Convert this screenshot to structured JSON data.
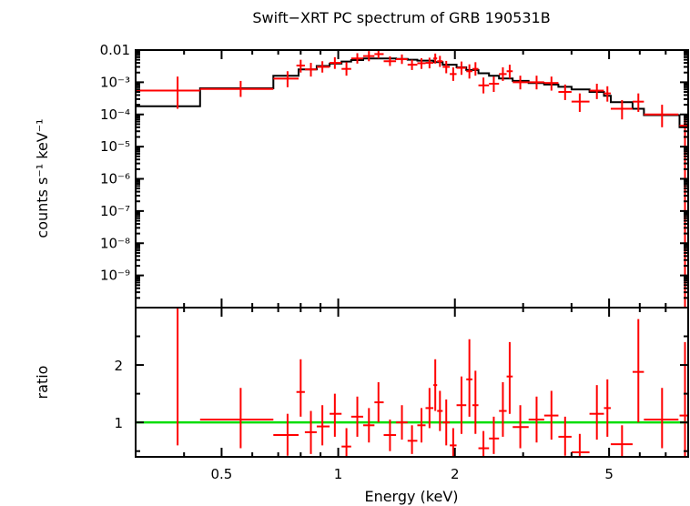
{
  "chart_data": [
    {
      "type": "scatter",
      "title": "Swift−XRT PC spectrum of GRB 190531B",
      "ylabel": "counts s⁻¹ keV⁻¹",
      "xscale": "log",
      "yscale": "log",
      "xlim": [
        0.3,
        8.0
      ],
      "ylim": [
        1e-10,
        0.01
      ],
      "grid": false,
      "yticks": [
        {
          "value": 0.01,
          "label": "0.01"
        },
        {
          "value": 0.001,
          "label": "10⁻³"
        },
        {
          "value": 0.0001,
          "label": "10⁻⁴"
        },
        {
          "value": 1e-05,
          "label": "10⁻⁵"
        },
        {
          "value": 1e-06,
          "label": "10⁻⁶"
        },
        {
          "value": 1e-07,
          "label": "10⁻⁷"
        },
        {
          "value": 1e-08,
          "label": "10⁻⁸"
        },
        {
          "value": 1e-09,
          "label": "10⁻⁹"
        }
      ],
      "data_color": "#ff0000",
      "model_color": "#000000",
      "series": [
        {
          "kind": "data",
          "points": [
            {
              "x": 0.385,
              "xlo": 0.3,
              "xhi": 0.44,
              "y": 0.00055,
              "ylo": 0.00015,
              "yhi": 0.0015
            },
            {
              "x": 0.56,
              "xlo": 0.44,
              "xhi": 0.68,
              "y": 0.00062,
              "ylo": 0.00035,
              "yhi": 0.0011
            },
            {
              "x": 0.74,
              "xlo": 0.68,
              "xhi": 0.79,
              "y": 0.0013,
              "ylo": 0.0007,
              "yhi": 0.0022
            },
            {
              "x": 0.8,
              "xlo": 0.78,
              "xhi": 0.82,
              "y": 0.0033,
              "ylo": 0.002,
              "yhi": 0.005
            },
            {
              "x": 0.85,
              "xlo": 0.82,
              "xhi": 0.88,
              "y": 0.0025,
              "ylo": 0.0015,
              "yhi": 0.004
            },
            {
              "x": 0.91,
              "xlo": 0.88,
              "xhi": 0.95,
              "y": 0.003,
              "ylo": 0.002,
              "yhi": 0.0045
            },
            {
              "x": 0.98,
              "xlo": 0.95,
              "xhi": 1.02,
              "y": 0.004,
              "ylo": 0.0026,
              "yhi": 0.006
            },
            {
              "x": 1.05,
              "xlo": 1.02,
              "xhi": 1.08,
              "y": 0.0026,
              "ylo": 0.0016,
              "yhi": 0.0042
            },
            {
              "x": 1.12,
              "xlo": 1.08,
              "xhi": 1.16,
              "y": 0.0055,
              "ylo": 0.0038,
              "yhi": 0.008
            },
            {
              "x": 1.2,
              "xlo": 1.16,
              "xhi": 1.24,
              "y": 0.0065,
              "ylo": 0.0045,
              "yhi": 0.0093
            },
            {
              "x": 1.27,
              "xlo": 1.24,
              "xhi": 1.31,
              "y": 0.0075,
              "ylo": 0.0055,
              "yhi": 0.0102
            },
            {
              "x": 1.36,
              "xlo": 1.31,
              "xhi": 1.41,
              "y": 0.0045,
              "ylo": 0.0032,
              "yhi": 0.0064
            },
            {
              "x": 1.46,
              "xlo": 1.41,
              "xhi": 1.51,
              "y": 0.0052,
              "ylo": 0.0037,
              "yhi": 0.0073
            },
            {
              "x": 1.55,
              "xlo": 1.51,
              "xhi": 1.6,
              "y": 0.0035,
              "ylo": 0.0024,
              "yhi": 0.005
            },
            {
              "x": 1.64,
              "xlo": 1.6,
              "xhi": 1.68,
              "y": 0.0039,
              "ylo": 0.0026,
              "yhi": 0.0056
            },
            {
              "x": 1.72,
              "xlo": 1.68,
              "xhi": 1.76,
              "y": 0.004,
              "ylo": 0.0027,
              "yhi": 0.0058
            },
            {
              "x": 1.78,
              "xlo": 1.76,
              "xhi": 1.8,
              "y": 0.0055,
              "ylo": 0.0038,
              "yhi": 0.0078
            },
            {
              "x": 1.83,
              "xlo": 1.8,
              "xhi": 1.86,
              "y": 0.0045,
              "ylo": 0.003,
              "yhi": 0.0066
            },
            {
              "x": 1.9,
              "xlo": 1.86,
              "xhi": 1.94,
              "y": 0.003,
              "ylo": 0.0019,
              "yhi": 0.0046
            },
            {
              "x": 1.98,
              "xlo": 1.94,
              "xhi": 2.02,
              "y": 0.0018,
              "ylo": 0.0011,
              "yhi": 0.0029
            },
            {
              "x": 2.08,
              "xlo": 2.02,
              "xhi": 2.14,
              "y": 0.0028,
              "ylo": 0.0017,
              "yhi": 0.0044
            },
            {
              "x": 2.18,
              "xlo": 2.14,
              "xhi": 2.22,
              "y": 0.0022,
              "ylo": 0.0013,
              "yhi": 0.0036
            },
            {
              "x": 2.26,
              "xlo": 2.22,
              "xhi": 2.3,
              "y": 0.0026,
              "ylo": 0.0016,
              "yhi": 0.0042
            },
            {
              "x": 2.37,
              "xlo": 2.3,
              "xhi": 2.45,
              "y": 0.0008,
              "ylo": 0.00045,
              "yhi": 0.0014
            },
            {
              "x": 2.52,
              "xlo": 2.45,
              "xhi": 2.6,
              "y": 0.0009,
              "ylo": 0.0005,
              "yhi": 0.0015
            },
            {
              "x": 2.66,
              "xlo": 2.6,
              "xhi": 2.72,
              "y": 0.0018,
              "ylo": 0.0011,
              "yhi": 0.0029
            },
            {
              "x": 2.77,
              "xlo": 2.72,
              "xhi": 2.82,
              "y": 0.0022,
              "ylo": 0.0013,
              "yhi": 0.0035
            },
            {
              "x": 2.95,
              "xlo": 2.82,
              "xhi": 3.1,
              "y": 0.001,
              "ylo": 0.0006,
              "yhi": 0.0016
            },
            {
              "x": 3.25,
              "xlo": 3.1,
              "xhi": 3.4,
              "y": 0.001,
              "ylo": 0.0006,
              "yhi": 0.0016
            },
            {
              "x": 3.55,
              "xlo": 3.4,
              "xhi": 3.7,
              "y": 0.00095,
              "ylo": 0.00055,
              "yhi": 0.0015
            },
            {
              "x": 3.85,
              "xlo": 3.7,
              "xhi": 4.0,
              "y": 0.0005,
              "ylo": 0.00028,
              "yhi": 0.00085
            },
            {
              "x": 4.2,
              "xlo": 4.0,
              "xhi": 4.45,
              "y": 0.00025,
              "ylo": 0.00012,
              "yhi": 0.00045
            },
            {
              "x": 4.65,
              "xlo": 4.45,
              "xhi": 4.85,
              "y": 0.00055,
              "ylo": 0.0003,
              "yhi": 0.0009
            },
            {
              "x": 4.95,
              "xlo": 4.85,
              "xhi": 5.05,
              "y": 0.00045,
              "ylo": 0.00025,
              "yhi": 0.00075
            },
            {
              "x": 5.4,
              "xlo": 5.05,
              "xhi": 5.75,
              "y": 0.00015,
              "ylo": 7e-05,
              "yhi": 0.00028
            },
            {
              "x": 5.95,
              "xlo": 5.75,
              "xhi": 6.15,
              "y": 0.00025,
              "ylo": 0.00012,
              "yhi": 0.00045
            },
            {
              "x": 6.85,
              "xlo": 6.15,
              "xhi": 7.55,
              "y": 0.0001,
              "ylo": 4e-05,
              "yhi": 0.0002
            },
            {
              "x": 7.85,
              "xlo": 7.6,
              "xhi": 8.0,
              "y": 4.5e-05,
              "ylo": 1e-10,
              "yhi": 0.0001
            }
          ]
        },
        {
          "kind": "model",
          "steps": [
            {
              "xlo": 0.3,
              "xhi": 0.44,
              "y": 0.00018
            },
            {
              "xlo": 0.44,
              "xhi": 0.68,
              "y": 0.00065
            },
            {
              "xlo": 0.68,
              "xhi": 0.79,
              "y": 0.0016
            },
            {
              "xlo": 0.79,
              "xhi": 0.88,
              "y": 0.0025
            },
            {
              "xlo": 0.88,
              "xhi": 0.95,
              "y": 0.0032
            },
            {
              "xlo": 0.95,
              "xhi": 1.02,
              "y": 0.0038
            },
            {
              "xlo": 1.02,
              "xhi": 1.08,
              "y": 0.0044
            },
            {
              "xlo": 1.08,
              "xhi": 1.16,
              "y": 0.0049
            },
            {
              "xlo": 1.16,
              "xhi": 1.31,
              "y": 0.0055
            },
            {
              "xlo": 1.31,
              "xhi": 1.41,
              "y": 0.0055
            },
            {
              "xlo": 1.41,
              "xhi": 1.51,
              "y": 0.0053
            },
            {
              "xlo": 1.51,
              "xhi": 1.6,
              "y": 0.005
            },
            {
              "xlo": 1.6,
              "xhi": 1.76,
              "y": 0.0047
            },
            {
              "xlo": 1.76,
              "xhi": 1.86,
              "y": 0.0042
            },
            {
              "xlo": 1.86,
              "xhi": 2.02,
              "y": 0.0035
            },
            {
              "xlo": 2.02,
              "xhi": 2.14,
              "y": 0.0029
            },
            {
              "xlo": 2.14,
              "xhi": 2.3,
              "y": 0.0024
            },
            {
              "xlo": 2.3,
              "xhi": 2.45,
              "y": 0.0019
            },
            {
              "xlo": 2.45,
              "xhi": 2.6,
              "y": 0.0016
            },
            {
              "xlo": 2.6,
              "xhi": 2.82,
              "y": 0.0013
            },
            {
              "xlo": 2.82,
              "xhi": 3.1,
              "y": 0.0011
            },
            {
              "xlo": 3.1,
              "xhi": 3.4,
              "y": 0.00095
            },
            {
              "xlo": 3.4,
              "xhi": 3.7,
              "y": 0.00085
            },
            {
              "xlo": 3.7,
              "xhi": 4.0,
              "y": 0.00072
            },
            {
              "xlo": 4.0,
              "xhi": 4.45,
              "y": 0.0006
            },
            {
              "xlo": 4.45,
              "xhi": 4.85,
              "y": 0.0005
            },
            {
              "xlo": 4.85,
              "xhi": 5.05,
              "y": 0.00038
            },
            {
              "xlo": 5.05,
              "xhi": 5.75,
              "y": 0.00024
            },
            {
              "xlo": 5.75,
              "xhi": 6.15,
              "y": 0.00015
            },
            {
              "xlo": 6.15,
              "xhi": 7.6,
              "y": 9.5e-05
            },
            {
              "xlo": 7.6,
              "xhi": 8.0,
              "y": 4e-05
            }
          ]
        }
      ]
    },
    {
      "type": "scatter",
      "xlabel": "Energy (keV)",
      "ylabel": "ratio",
      "xscale": "log",
      "xlim": [
        0.3,
        8.0
      ],
      "ylim": [
        0.4,
        3.0
      ],
      "grid": false,
      "xticks": [
        {
          "value": 0.5,
          "label": "0.5"
        },
        {
          "value": 1,
          "label": "1"
        },
        {
          "value": 2,
          "label": "2"
        },
        {
          "value": 5,
          "label": "5"
        }
      ],
      "yticks": [
        {
          "value": 1,
          "label": "1"
        },
        {
          "value": 2,
          "label": "2"
        }
      ],
      "reference_line": {
        "y": 1,
        "color": "#00dd00"
      },
      "data_color": "#ff0000",
      "series": [
        {
          "kind": "data",
          "points": [
            {
              "x": 0.385,
              "xlo": 0.3,
              "xhi": 0.44,
              "y": 3.0,
              "ylo": 0.6,
              "yhi": 3.0
            },
            {
              "x": 0.56,
              "xlo": 0.44,
              "xhi": 0.68,
              "y": 1.05,
              "ylo": 0.55,
              "yhi": 1.6
            },
            {
              "x": 0.74,
              "xlo": 0.68,
              "xhi": 0.79,
              "y": 0.78,
              "ylo": 0.42,
              "yhi": 1.15
            },
            {
              "x": 0.8,
              "xlo": 0.78,
              "xhi": 0.82,
              "y": 1.53,
              "ylo": 1.1,
              "yhi": 2.1
            },
            {
              "x": 0.85,
              "xlo": 0.82,
              "xhi": 0.88,
              "y": 0.83,
              "ylo": 0.45,
              "yhi": 1.2
            },
            {
              "x": 0.91,
              "xlo": 0.88,
              "xhi": 0.95,
              "y": 0.93,
              "ylo": 0.6,
              "yhi": 1.3
            },
            {
              "x": 0.98,
              "xlo": 0.95,
              "xhi": 1.02,
              "y": 1.15,
              "ylo": 0.75,
              "yhi": 1.5
            },
            {
              "x": 1.05,
              "xlo": 1.02,
              "xhi": 1.08,
              "y": 0.58,
              "ylo": 0.4,
              "yhi": 0.9
            },
            {
              "x": 1.12,
              "xlo": 1.08,
              "xhi": 1.16,
              "y": 1.1,
              "ylo": 0.75,
              "yhi": 1.45
            },
            {
              "x": 1.2,
              "xlo": 1.16,
              "xhi": 1.24,
              "y": 0.95,
              "ylo": 0.65,
              "yhi": 1.25
            },
            {
              "x": 1.27,
              "xlo": 1.24,
              "xhi": 1.31,
              "y": 1.35,
              "ylo": 1.0,
              "yhi": 1.7
            },
            {
              "x": 1.36,
              "xlo": 1.31,
              "xhi": 1.41,
              "y": 0.78,
              "ylo": 0.5,
              "yhi": 1.05
            },
            {
              "x": 1.46,
              "xlo": 1.41,
              "xhi": 1.51,
              "y": 1.0,
              "ylo": 0.7,
              "yhi": 1.3
            },
            {
              "x": 1.55,
              "xlo": 1.51,
              "xhi": 1.6,
              "y": 0.68,
              "ylo": 0.45,
              "yhi": 0.95
            },
            {
              "x": 1.64,
              "xlo": 1.6,
              "xhi": 1.68,
              "y": 0.95,
              "ylo": 0.65,
              "yhi": 1.25
            },
            {
              "x": 1.72,
              "xlo": 1.68,
              "xhi": 1.76,
              "y": 1.25,
              "ylo": 0.9,
              "yhi": 1.6
            },
            {
              "x": 1.78,
              "xlo": 1.76,
              "xhi": 1.8,
              "y": 1.65,
              "ylo": 1.2,
              "yhi": 2.1
            },
            {
              "x": 1.83,
              "xlo": 1.8,
              "xhi": 1.86,
              "y": 1.2,
              "ylo": 0.85,
              "yhi": 1.55
            },
            {
              "x": 1.9,
              "xlo": 1.86,
              "xhi": 1.94,
              "y": 1.0,
              "ylo": 0.6,
              "yhi": 1.4
            },
            {
              "x": 1.98,
              "xlo": 1.94,
              "xhi": 2.02,
              "y": 0.6,
              "ylo": 0.4,
              "yhi": 0.9
            },
            {
              "x": 2.08,
              "xlo": 2.02,
              "xhi": 2.14,
              "y": 1.3,
              "ylo": 0.8,
              "yhi": 1.8
            },
            {
              "x": 2.18,
              "xlo": 2.14,
              "xhi": 2.22,
              "y": 1.75,
              "ylo": 1.1,
              "yhi": 2.45
            },
            {
              "x": 2.26,
              "xlo": 2.22,
              "xhi": 2.3,
              "y": 1.3,
              "ylo": 0.8,
              "yhi": 1.9
            },
            {
              "x": 2.37,
              "xlo": 2.3,
              "xhi": 2.45,
              "y": 0.55,
              "ylo": 0.4,
              "yhi": 0.85
            },
            {
              "x": 2.52,
              "xlo": 2.45,
              "xhi": 2.6,
              "y": 0.72,
              "ylo": 0.45,
              "yhi": 1.1
            },
            {
              "x": 2.66,
              "xlo": 2.6,
              "xhi": 2.72,
              "y": 1.2,
              "ylo": 0.75,
              "yhi": 1.7
            },
            {
              "x": 2.77,
              "xlo": 2.72,
              "xhi": 2.82,
              "y": 1.8,
              "ylo": 1.15,
              "yhi": 2.4
            },
            {
              "x": 2.95,
              "xlo": 2.82,
              "xhi": 3.1,
              "y": 0.92,
              "ylo": 0.55,
              "yhi": 1.3
            },
            {
              "x": 3.25,
              "xlo": 3.1,
              "xhi": 3.4,
              "y": 1.05,
              "ylo": 0.65,
              "yhi": 1.45
            },
            {
              "x": 3.55,
              "xlo": 3.4,
              "xhi": 3.7,
              "y": 1.12,
              "ylo": 0.7,
              "yhi": 1.55
            },
            {
              "x": 3.85,
              "xlo": 3.7,
              "xhi": 4.0,
              "y": 0.75,
              "ylo": 0.42,
              "yhi": 1.1
            },
            {
              "x": 4.2,
              "xlo": 4.0,
              "xhi": 4.45,
              "y": 0.48,
              "ylo": 0.4,
              "yhi": 0.8
            },
            {
              "x": 4.65,
              "xlo": 4.45,
              "xhi": 4.85,
              "y": 1.15,
              "ylo": 0.7,
              "yhi": 1.65
            },
            {
              "x": 4.95,
              "xlo": 4.85,
              "xhi": 5.05,
              "y": 1.25,
              "ylo": 0.75,
              "yhi": 1.75
            },
            {
              "x": 5.4,
              "xlo": 5.05,
              "xhi": 5.75,
              "y": 0.62,
              "ylo": 0.4,
              "yhi": 0.95
            },
            {
              "x": 5.95,
              "xlo": 5.75,
              "xhi": 6.15,
              "y": 1.88,
              "ylo": 1.0,
              "yhi": 2.8
            },
            {
              "x": 6.85,
              "xlo": 6.15,
              "xhi": 7.55,
              "y": 1.05,
              "ylo": 0.55,
              "yhi": 1.6
            },
            {
              "x": 7.85,
              "xlo": 7.6,
              "xhi": 8.0,
              "y": 1.12,
              "ylo": 0.4,
              "yhi": 2.4
            }
          ]
        }
      ]
    }
  ]
}
